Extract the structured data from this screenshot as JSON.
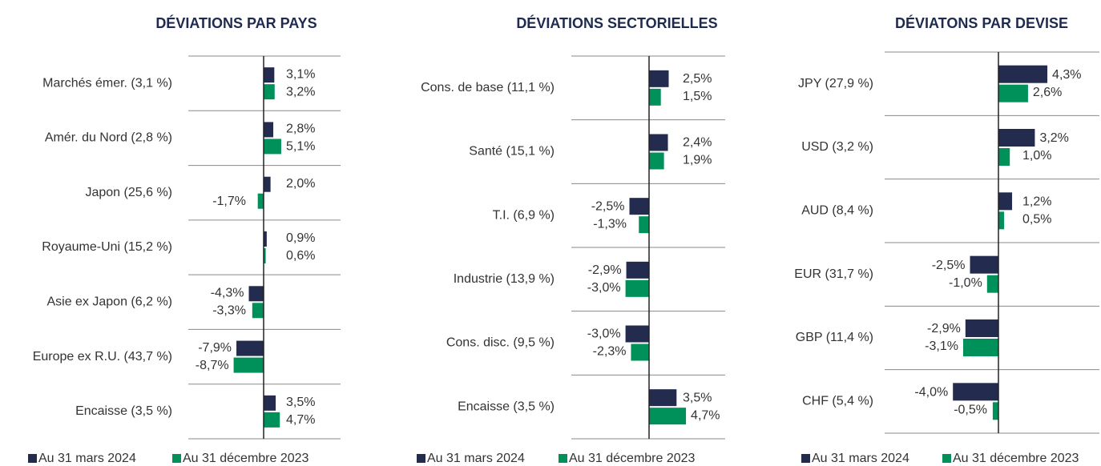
{
  "chart_data": [
    {
      "type": "bar",
      "orientation": "horizontal",
      "title": "DÉVIATIONS PAR PAYS",
      "categories": [
        "Marchés émer. (3,1 %)",
        "Amér. du Nord (2,8 %)",
        "Japon (25,6 %)",
        "Royaume-Uni (15,2 %)",
        "Asie ex Japon (6,2 %)",
        "Europe ex R.U. (43,7 %)",
        "Encaisse (3,5 %)"
      ],
      "series": [
        {
          "name": "Au 31 mars 2024",
          "color": "#232b4e",
          "values": [
            3.1,
            2.8,
            2.0,
            0.9,
            -4.3,
            -7.9,
            3.5
          ],
          "value_labels": [
            "3,1%",
            "2,8%",
            "2,0%",
            "0,9%",
            "-4,3%",
            "-7,9%",
            "3,5%"
          ]
        },
        {
          "name": "Au 31 décembre 2023",
          "color": "#00915a",
          "values": [
            3.2,
            5.1,
            -1.7,
            0.6,
            -3.3,
            -8.7,
            4.7
          ],
          "value_labels": [
            "3,2%",
            "5,1%",
            "-1,7%",
            "0,6%",
            "-3,3%",
            "-8,7%",
            "4,7%"
          ]
        }
      ]
    },
    {
      "type": "bar",
      "orientation": "horizontal",
      "title": "DÉVIATIONS SECTORIELLES",
      "categories": [
        "Cons. de base (11,1 %)",
        "Santé (15,1 %)",
        "T.I. (6,9 %)",
        "Industrie (13,9 %)",
        "Cons. disc. (9,5 %)",
        "Encaisse (3,5 %)"
      ],
      "series": [
        {
          "name": "Au 31 mars 2024",
          "color": "#232b4e",
          "values": [
            2.5,
            2.4,
            -2.5,
            -2.9,
            -3.0,
            3.5
          ],
          "value_labels": [
            "2,5%",
            "2,4%",
            "-2,5%",
            "-2,9%",
            "-3,0%",
            "3,5%"
          ]
        },
        {
          "name": "Au 31 décembre 2023",
          "color": "#00915a",
          "values": [
            1.5,
            1.9,
            -1.3,
            -3.0,
            -2.3,
            4.7
          ],
          "value_labels": [
            "1,5%",
            "1,9%",
            "-1,3%",
            "-3,0%",
            "-2,3%",
            "4,7%"
          ]
        }
      ]
    },
    {
      "type": "bar",
      "orientation": "horizontal",
      "title": "DÉVIATONS PAR DEVISE",
      "categories": [
        "JPY (27,9 %)",
        "USD (3,2 %)",
        "AUD (8,4 %)",
        "EUR (31,7 %)",
        "GBP (11,4 %)",
        "CHF (5,4 %)"
      ],
      "series": [
        {
          "name": "Au 31 mars 2024",
          "color": "#232b4e",
          "values": [
            4.3,
            3.2,
            1.2,
            -2.5,
            -2.9,
            -4.0
          ],
          "value_labels": [
            "4,3%",
            "3,2%",
            "1,2%",
            "-2,5%",
            "-2,9%",
            "-4,0%"
          ]
        },
        {
          "name": "Au 31 décembre 2023",
          "color": "#00915a",
          "values": [
            2.6,
            1.0,
            0.5,
            -1.0,
            -3.1,
            -0.5
          ],
          "value_labels": [
            "2,6%",
            "1,0%",
            "0,5%",
            "-1,0%",
            "-3,1%",
            "-0,5%"
          ]
        }
      ]
    }
  ]
}
